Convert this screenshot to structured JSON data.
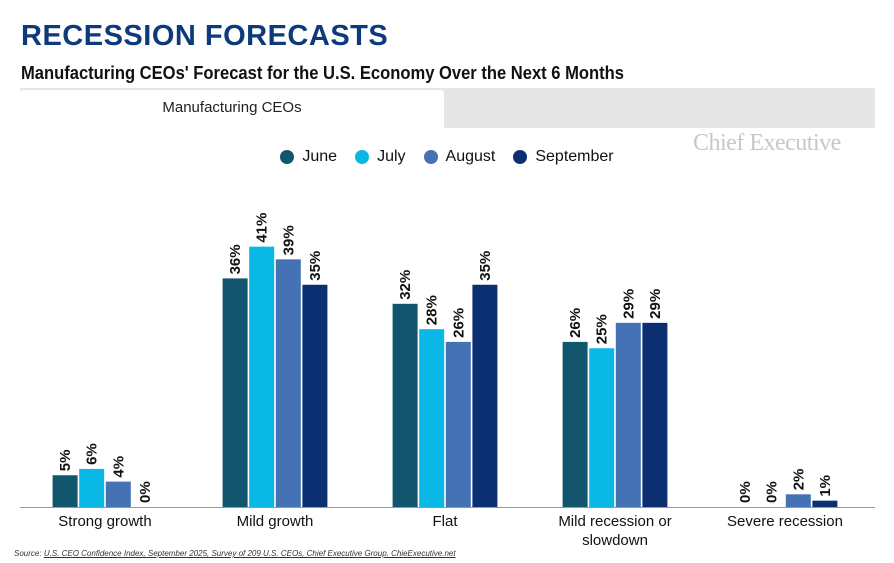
{
  "title": "RECESSION FORECASTS",
  "subtitle": "Manufacturing CEOs' Forecast for the U.S. Economy Over the Next 6 Months",
  "tab": "Manufacturing CEOs",
  "logo": "Chief Executive",
  "source_label": "Source:",
  "source_text": "U.S. CEO Confidence Index, September 2025, Survey of 209 U.S. CEOs, Chief Executive Group. ChieExecutive.net",
  "chart_data": {
    "type": "bar",
    "categories": [
      "Strong growth",
      "Mild growth",
      "Flat",
      "Mild recession or slowdown",
      "Severe recession"
    ],
    "series": [
      {
        "name": "June",
        "color": "#12566e",
        "values": [
          5,
          36,
          32,
          26,
          0
        ]
      },
      {
        "name": "July",
        "color": "#0ab8e6",
        "values": [
          6,
          41,
          28,
          25,
          0
        ]
      },
      {
        "name": "August",
        "color": "#4472b4",
        "values": [
          4,
          39,
          26,
          29,
          2
        ]
      },
      {
        "name": "September",
        "color": "#0c2f72",
        "values": [
          0,
          35,
          35,
          29,
          1
        ]
      }
    ],
    "value_suffix": "%",
    "legend": "top-center",
    "grid": false
  }
}
